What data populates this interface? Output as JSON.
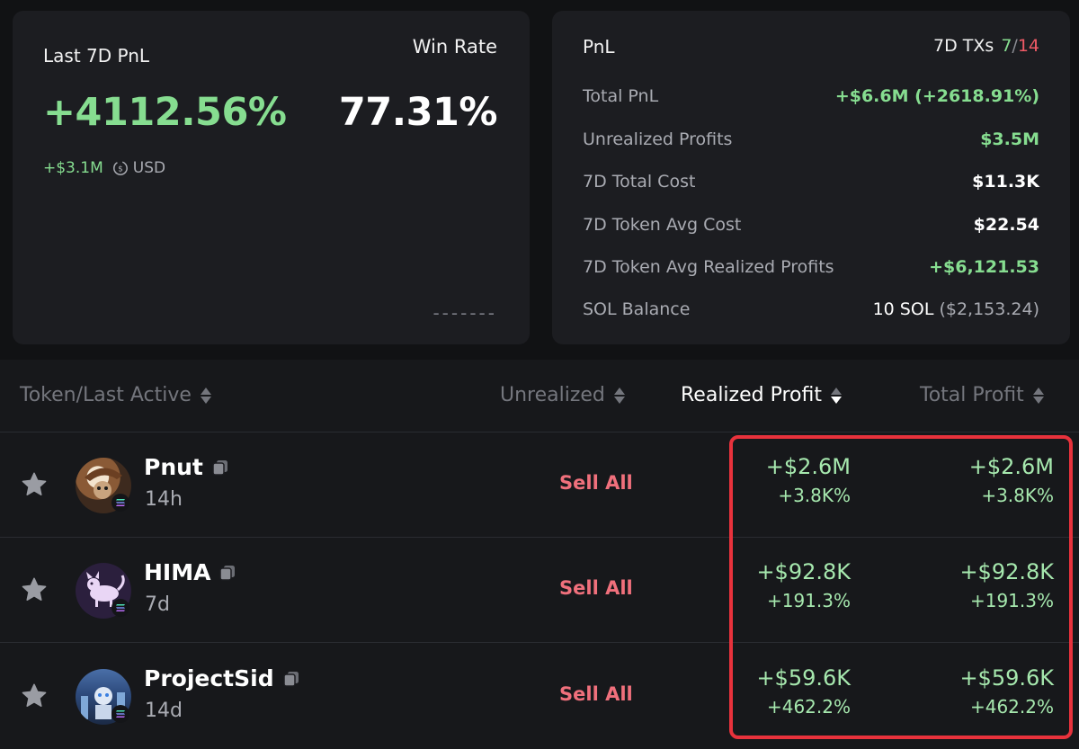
{
  "summary": {
    "last_pnl_label": "Last 7D PnL",
    "pnl_percent": "+4112.56%",
    "pnl_amount": "+$3.1M",
    "currency": "USD",
    "win_rate_label": "Win Rate",
    "win_rate": "77.31%",
    "dashes": "-------"
  },
  "details": {
    "title": "PnL",
    "txs_label": "7D TXs",
    "txs_win": "7",
    "txs_sep": "/",
    "txs_loss": "14",
    "rows": [
      {
        "label": "Total PnL",
        "value": "+$6.6M (+2618.91%)",
        "value_extra": ""
      },
      {
        "label": "Unrealized Profits",
        "value": "$3.5M",
        "value_extra": ""
      },
      {
        "label": "7D Total Cost",
        "value": "$11.3K",
        "value_extra": ""
      },
      {
        "label": "7D Token Avg Cost",
        "value": "$22.54",
        "value_extra": ""
      },
      {
        "label": "7D Token Avg Realized Profits",
        "value": "+$6,121.53",
        "value_extra": ""
      },
      {
        "label": "SOL Balance",
        "value": "10 SOL",
        "value_extra": "($2,153.24)"
      }
    ]
  },
  "table": {
    "headers": {
      "token": "Token/Last Active",
      "unrealized": "Unrealized",
      "realized": "Realized Profit",
      "total": "Total Profit"
    },
    "rows": [
      {
        "name": "Pnut",
        "age": "14h",
        "action": "Sell All",
        "realized_amt": "+$2.6M",
        "realized_pct": "+3.8K%",
        "total_amt": "+$2.6M",
        "total_pct": "+3.8K%"
      },
      {
        "name": "HIMA",
        "age": "7d",
        "action": "Sell All",
        "realized_amt": "+$92.8K",
        "realized_pct": "+191.3%",
        "total_amt": "+$92.8K",
        "total_pct": "+191.3%"
      },
      {
        "name": "ProjectSid",
        "age": "14d",
        "action": "Sell All",
        "realized_amt": "+$59.6K",
        "realized_pct": "+462.2%",
        "total_amt": "+$59.6K",
        "total_pct": "+462.2%"
      }
    ]
  },
  "colors": {
    "positive": "#86dd90",
    "negative": "#ef5a66",
    "sell": "#f0707c",
    "highlight": "#e8323c",
    "background": "#111214",
    "card": "#1c1d21"
  },
  "icons": [
    "star-icon",
    "copy-icon",
    "solana-icon",
    "sort-icon",
    "currency-swap-icon"
  ]
}
